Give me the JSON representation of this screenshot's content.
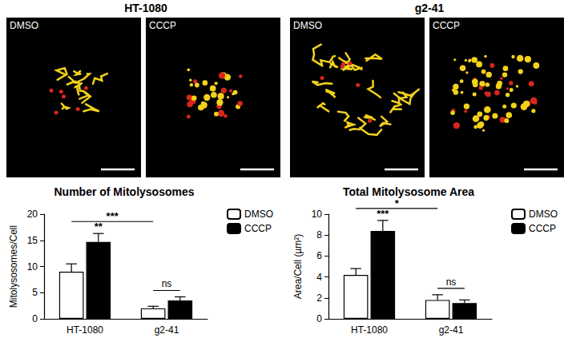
{
  "figure": {
    "panels": [
      {
        "title": "HT-1080",
        "images": [
          "DMSO",
          "CCCP"
        ]
      },
      {
        "title": "g2-41",
        "images": [
          "DMSO",
          "CCCP"
        ]
      }
    ]
  },
  "chart_data": [
    {
      "type": "bar",
      "title": "Number of Mitolysosomes",
      "y_label": "Mitolysosomes/Cell",
      "categories": [
        "HT-1080",
        "g2-41"
      ],
      "series": [
        {
          "name": "DMSO",
          "color": "#ffffff",
          "values": [
            9.0,
            2.0
          ],
          "errors": [
            1.5,
            0.4
          ]
        },
        {
          "name": "CCCP",
          "color": "#000000",
          "values": [
            14.7,
            3.5
          ],
          "errors": [
            1.6,
            0.7
          ]
        }
      ],
      "ylim": [
        0,
        20
      ],
      "yticks": [
        0,
        5,
        10,
        15,
        20
      ],
      "grid": false,
      "legend": "upper right",
      "annotations": [
        {
          "text": "***",
          "from": {
            "category": "HT-1080",
            "series": "DMSO"
          },
          "to": {
            "category": "g2-41",
            "series": "DMSO"
          }
        },
        {
          "text": "**",
          "at": {
            "category": "HT-1080",
            "series": "CCCP"
          }
        },
        {
          "text": "ns",
          "from": {
            "category": "g2-41",
            "series": "DMSO"
          },
          "to": {
            "category": "g2-41",
            "series": "CCCP"
          }
        }
      ]
    },
    {
      "type": "bar",
      "title": "Total Mitolysosome Area",
      "y_label": "Area/Cell (µm²)",
      "categories": [
        "HT-1080",
        "g2-41"
      ],
      "series": [
        {
          "name": "DMSO",
          "color": "#ffffff",
          "values": [
            4.2,
            1.8
          ],
          "errors": [
            0.6,
            0.5
          ]
        },
        {
          "name": "CCCP",
          "color": "#000000",
          "values": [
            8.4,
            1.5
          ],
          "errors": [
            1.0,
            0.3
          ]
        }
      ],
      "ylim": [
        0,
        10
      ],
      "yticks": [
        0,
        2,
        4,
        6,
        8,
        10
      ],
      "grid": false,
      "legend": "upper right",
      "annotations": [
        {
          "text": "*",
          "from": {
            "category": "HT-1080",
            "series": "DMSO"
          },
          "to": {
            "category": "g2-41",
            "series": "DMSO"
          }
        },
        {
          "text": "***",
          "at": {
            "category": "HT-1080",
            "series": "CCCP"
          }
        },
        {
          "text": "ns",
          "from": {
            "category": "g2-41",
            "series": "DMSO"
          },
          "to": {
            "category": "g2-41",
            "series": "CCCP"
          }
        }
      ]
    }
  ]
}
